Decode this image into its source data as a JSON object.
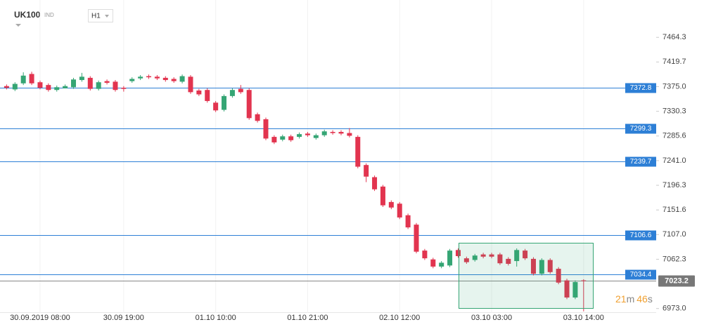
{
  "header": {
    "symbol": "UK100",
    "market": "IND",
    "timeframe": "H1"
  },
  "chart_data": {
    "type": "candlestick",
    "categories": [
      null,
      null,
      null,
      null,
      "30.09.2019  08:00",
      null,
      null,
      null,
      null,
      null,
      null,
      null,
      null,
      null,
      "30.09  19:00",
      null,
      null,
      null,
      null,
      null,
      null,
      null,
      null,
      null,
      null,
      "01.10  10:00",
      null,
      null,
      null,
      null,
      null,
      null,
      null,
      null,
      null,
      null,
      "01.10  21:00",
      null,
      null,
      null,
      null,
      null,
      null,
      null,
      null,
      null,
      null,
      "02.10  12:00",
      null,
      null,
      null,
      null,
      null,
      null,
      null,
      null,
      null,
      null,
      "03.10  03:00",
      null,
      null,
      null,
      null,
      null,
      null,
      null,
      null,
      null,
      null,
      "03.10  14:00"
    ],
    "open": [
      7376,
      7370,
      7381,
      7398,
      7383,
      7378,
      7369,
      7372,
      7374,
      7387,
      7391,
      7371,
      7385,
      7384,
      7373,
      7385,
      7390,
      7394,
      7393,
      7391,
      7389,
      7384,
      7393,
      7368,
      7369,
      7346,
      7333,
      7358,
      7371,
      7369,
      7325,
      7316,
      7284,
      7279,
      7285,
      7284,
      7290,
      7282,
      7287,
      7293,
      7293,
      7291,
      7284,
      7233,
      7211,
      7194,
      7166,
      7163,
      7142,
      7125,
      7078,
      7062,
      7049,
      7051,
      7079,
      7064,
      7061,
      7071,
      7071,
      7071,
      7063,
      7059,
      7078,
      7063,
      7036,
      7061,
      7045,
      7024,
      6993,
      7024
    ],
    "high": [
      7379,
      7383,
      7401,
      7402,
      7386,
      7381,
      7377,
      7379,
      7391,
      7400,
      7394,
      7386,
      7388,
      7387,
      7376,
      7392,
      7396,
      7397,
      7396,
      7394,
      7392,
      7397,
      7396,
      7371,
      7372,
      7349,
      7361,
      7372,
      7378,
      7372,
      7328,
      7319,
      7287,
      7288,
      7288,
      7292,
      7293,
      7290,
      7297,
      7296,
      7296,
      7300,
      7287,
      7236,
      7214,
      7197,
      7169,
      7166,
      7145,
      7128,
      7081,
      7065,
      7059,
      7081,
      7082,
      7067,
      7072,
      7074,
      7074,
      7074,
      7066,
      7082,
      7081,
      7066,
      7064,
      7064,
      7048,
      7027,
      7024,
      7026
    ],
    "low": [
      7370,
      7367,
      7378,
      7378,
      7370,
      7366,
      7366,
      7373,
      7371,
      7384,
      7368,
      7368,
      7379,
      7366,
      7366,
      7382,
      7387,
      7389,
      7387,
      7384,
      7382,
      7381,
      7362,
      7358,
      7346,
      7329,
      7330,
      7355,
      7362,
      7315,
      7310,
      7278,
      7271,
      7276,
      7275,
      7281,
      7284,
      7279,
      7284,
      7288,
      7287,
      7283,
      7227,
      7202,
      7186,
      7157,
      7153,
      7135,
      7117,
      7073,
      7061,
      7046,
      7046,
      7048,
      7065,
      7054,
      7058,
      7064,
      7064,
      7052,
      7051,
      7049,
      7061,
      7033,
      7033,
      7036,
      7017,
      6990,
      6990,
      6968
    ],
    "close": [
      7373,
      7380,
      7395,
      7381,
      7373,
      7369,
      7374,
      7376,
      7388,
      7393,
      7371,
      7383,
      7382,
      7369,
      7371,
      7389,
      7393,
      7392,
      7390,
      7387,
      7385,
      7394,
      7365,
      7361,
      7349,
      7332,
      7358,
      7369,
      7365,
      7318,
      7313,
      7281,
      7274,
      7285,
      7278,
      7289,
      7287,
      7287,
      7294,
      7291,
      7290,
      7286,
      7230,
      7212,
      7189,
      7160,
      7156,
      7138,
      7120,
      7076,
      7064,
      7049,
      7056,
      7078,
      7068,
      7057,
      7069,
      7067,
      7067,
      7055,
      7054,
      7079,
      7064,
      7036,
      7061,
      7039,
      7020,
      6993,
      7021,
      7023.2
    ],
    "up_color": "#35a574",
    "down_color": "#e2344f",
    "ylim": [
      6965,
      7532
    ],
    "yticks": [
      7464.3,
      7419.7,
      {
        "value": 7375,
        "label": "7375.0"
      },
      7330.3,
      7285.6,
      {
        "value": 7241,
        "label": "7241.0"
      },
      7196.3,
      7151.6,
      {
        "value": 7107,
        "label": "7107.0"
      },
      7062.3,
      {
        "value": 6973,
        "label": "6973.0"
      }
    ],
    "levels": [
      7372.8,
      7299.3,
      7239.7,
      7106.6,
      7034.4
    ],
    "level_color": "#2d7fd6",
    "current_price": 7023.2,
    "countdown": {
      "minutes": 21,
      "minutes_unit": "m",
      "seconds": 46,
      "seconds_unit": "s"
    }
  }
}
